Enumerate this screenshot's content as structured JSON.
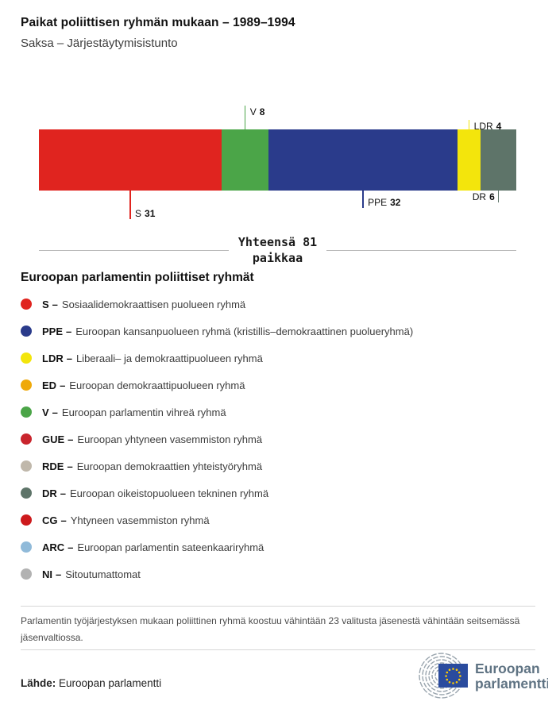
{
  "header": {
    "title": "Paikat poliittisen ryhmän mukaan – 1989–1994",
    "subtitle": "Saksa – Järjestäytymisistunto"
  },
  "chart_data": {
    "type": "bar",
    "variant": "stacked-horizontal-single-bar",
    "title": "Paikat poliittisen ryhmän mukaan – 1989–1994",
    "subtitle": "Saksa – Järjestäytymisistunto",
    "total_seats": 81,
    "total_label_line1": "Yhteensä 81",
    "total_label_line2": "paikkaa",
    "segments": [
      {
        "abbr": "S",
        "seats": 31,
        "color": "#e0241f",
        "label_side": "below",
        "tick_len": 36,
        "text_side": "right"
      },
      {
        "abbr": "V",
        "seats": 8,
        "color": "#4ba548",
        "label_side": "above",
        "tick_len": 30,
        "text_side": "right"
      },
      {
        "abbr": "PPE",
        "seats": 32,
        "color": "#2a3b8b",
        "label_side": "below",
        "tick_len": 22,
        "text_side": "right"
      },
      {
        "abbr": "LDR",
        "seats": 4,
        "color": "#f3e50c",
        "label_side": "above",
        "tick_len": 12,
        "text_side": "right"
      },
      {
        "abbr": "DR",
        "seats": 6,
        "color": "#5e7469",
        "label_side": "below",
        "tick_len": 15,
        "text_side": "left"
      }
    ]
  },
  "legend": {
    "heading": "Euroopan parlamentin poliittiset ryhmät",
    "separator": "–",
    "items": [
      {
        "abbr": "S",
        "color": "#e0241f",
        "desc": "Sosiaalidemokraattisen puolueen ryhmä"
      },
      {
        "abbr": "PPE",
        "color": "#2a3b8b",
        "desc": "Euroopan kansanpuolueen ryhmä (kristillis–demokraattinen puolueryhmä)"
      },
      {
        "abbr": "LDR",
        "color": "#f3e50c",
        "desc": "Liberaali– ja demokraattipuolueen ryhmä"
      },
      {
        "abbr": "ED",
        "color": "#efa90a",
        "desc": "Euroopan demokraattipuolueen ryhmä"
      },
      {
        "abbr": "V",
        "color": "#4ba548",
        "desc": "Euroopan parlamentin vihreä ryhmä"
      },
      {
        "abbr": "GUE",
        "color": "#c9252d",
        "desc": "Euroopan yhtyneen vasemmiston ryhmä"
      },
      {
        "abbr": "RDE",
        "color": "#c0b8ab",
        "desc": "Euroopan demokraattien yhteistyöryhmä"
      },
      {
        "abbr": "DR",
        "color": "#5e7469",
        "desc": "Euroopan oikeistopuolueen tekninen ryhmä"
      },
      {
        "abbr": "CG",
        "color": "#cd1a1c",
        "desc": "Yhtyneen vasemmiston ryhmä"
      },
      {
        "abbr": "ARC",
        "color": "#90bad9",
        "desc": "Euroopan parlamentin sateenkaariryhmä"
      },
      {
        "abbr": "NI",
        "color": "#b2b2b2",
        "desc": "Sitoutumattomat"
      }
    ]
  },
  "footer": {
    "note": "Parlamentin työjärjestyksen mukaan poliittinen ryhmä koostuu vähintään 23 valitusta jäsenestä vähintään seitsemässä jäsenvaltiossa.",
    "source_label": "Lähde:",
    "source": "Euroopan parlamentti",
    "logo_line1": "Euroopan",
    "logo_line2": "parlamentti",
    "logo_colors": {
      "arc": "#9aa5ae",
      "flag": "#2a4b9e",
      "stars": "#ffcc00",
      "text": "#5f7383"
    }
  }
}
